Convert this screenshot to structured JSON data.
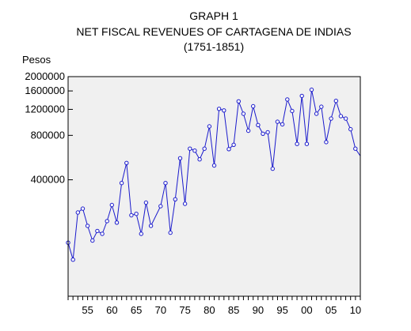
{
  "chart_data": {
    "type": "line",
    "title": "GRAPH 1",
    "subtitle": "NET FISCAL REVENUES OF CARTAGENA DE INDIAS",
    "period": "(1751-1851)",
    "ylabel": "Pesos",
    "yscale": "log",
    "ylim": [
      65000,
      2000000
    ],
    "y_ticks": [
      400000,
      800000,
      1200000,
      1600000,
      2000000
    ],
    "y_tick_labels": [
      "400000",
      "800000",
      "1200000",
      "1600000",
      "2000000"
    ],
    "xlim": [
      1751,
      1811
    ],
    "x_ticks": [
      1755,
      1760,
      1765,
      1770,
      1775,
      1780,
      1785,
      1790,
      1795,
      1800,
      1805,
      1810
    ],
    "x_tick_labels": [
      "55",
      "60",
      "65",
      "70",
      "75",
      "80",
      "85",
      "90",
      "95",
      "00",
      "05",
      "10"
    ],
    "grid": false,
    "line_color": "#1a1acc",
    "plot_background": "#f0f0f0",
    "series": [
      {
        "x": [
          1751,
          1752,
          1753,
          1754,
          1755,
          1756,
          1757,
          1758,
          1759,
          1760,
          1761,
          1762,
          1763,
          1764,
          1765,
          1766,
          1767,
          1768,
          1770,
          1771,
          1772,
          1773,
          1774,
          1775,
          1776,
          1777,
          1778,
          1779,
          1780,
          1781,
          1782,
          1783,
          1784,
          1785,
          1786,
          1787,
          1788,
          1789,
          1790,
          1791,
          1792,
          1793,
          1794,
          1795,
          1796,
          1797,
          1798,
          1799,
          1800,
          1801,
          1802,
          1803,
          1804,
          1805,
          1806,
          1807,
          1808,
          1809,
          1810,
          1811
        ],
        "y": [
          150000,
          115000,
          240000,
          255000,
          195000,
          155000,
          180000,
          172000,
          210000,
          270000,
          205000,
          380000,
          520000,
          230000,
          235000,
          172000,
          280000,
          195000,
          265000,
          380000,
          175000,
          295000,
          560000,
          275000,
          650000,
          630000,
          550000,
          650000,
          920000,
          500000,
          1210000,
          1180000,
          645000,
          690000,
          1360000,
          1120000,
          860000,
          1260000,
          940000,
          820000,
          840000,
          475000,
          990000,
          950000,
          1400000,
          1170000,
          700000,
          1480000,
          700000,
          1630000,
          1120000,
          1250000,
          720000,
          1040000,
          1370000,
          1080000,
          1040000,
          880000,
          650000,
          580000
        ]
      }
    ]
  }
}
